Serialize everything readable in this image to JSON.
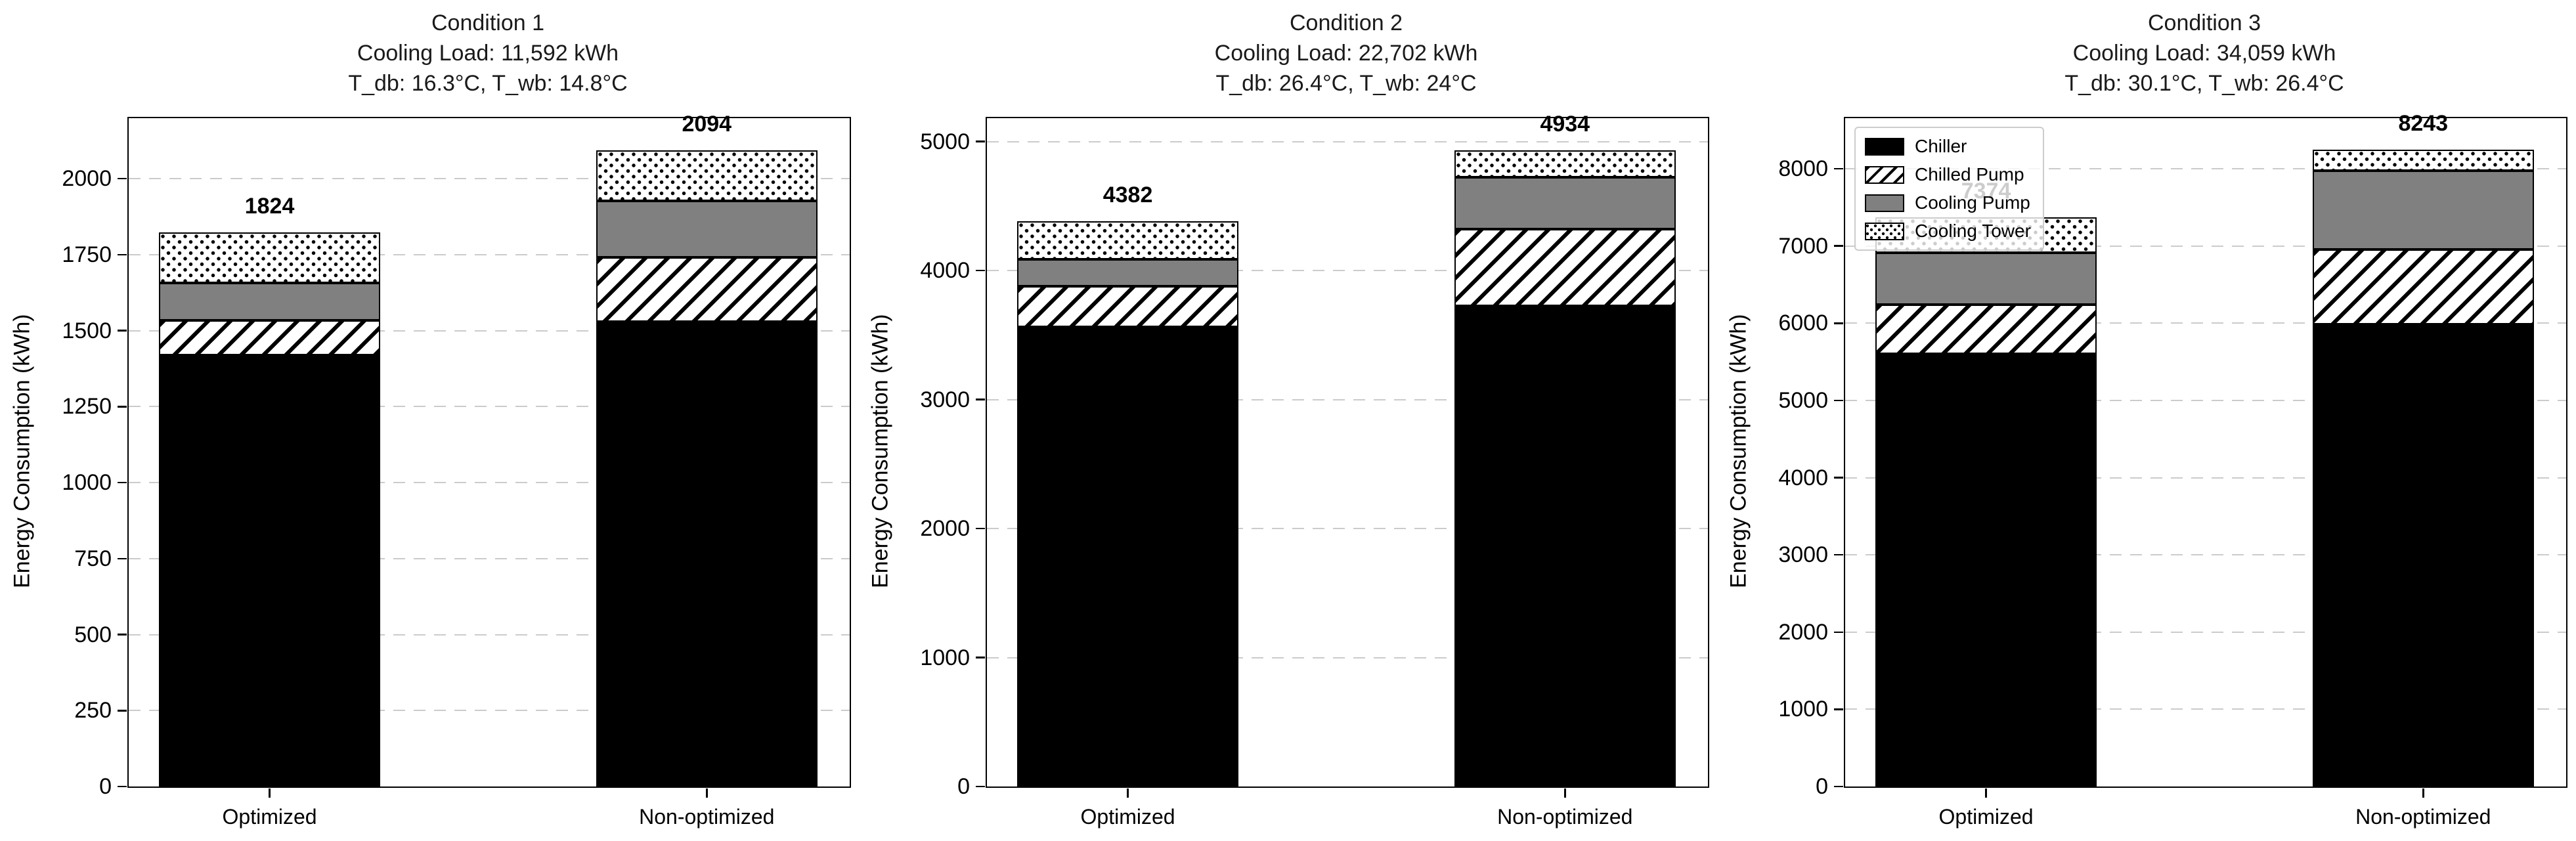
{
  "figure": {
    "background": "#ffffff"
  },
  "style": {
    "black": "#000000",
    "gray": "#808080",
    "white": "#ffffff",
    "grid_color": "#cbcbcb",
    "legend_border": "#cccccc",
    "patterns": {
      "Chiller": "solid-black",
      "Chilled Pump": "diagonal-hatch",
      "Cooling Pump": "solid-gray",
      "Cooling Tower": "dots"
    }
  },
  "legend": {
    "subplot_index": 2,
    "location": "upper-left",
    "entries": [
      {
        "label": "Chiller",
        "pattern": "solid-black"
      },
      {
        "label": "Chilled Pump",
        "pattern": "diagonal-hatch"
      },
      {
        "label": "Cooling Pump",
        "pattern": "solid-gray"
      },
      {
        "label": "Cooling Tower",
        "pattern": "dots"
      }
    ]
  },
  "chart_data": [
    {
      "type": "bar",
      "stacked": true,
      "title_lines": [
        "Condition 1",
        "Cooling Load: 11,592 kWh",
        "T_db: 16.3°C, T_wb: 14.8°C"
      ],
      "categories": [
        "Optimized",
        "Non-optimized"
      ],
      "series": [
        {
          "name": "Chiller",
          "values": [
            1419,
            1529
          ]
        },
        {
          "name": "Chilled Pump",
          "values": [
            115,
            213
          ]
        },
        {
          "name": "Cooling Pump",
          "values": [
            123,
            185
          ]
        },
        {
          "name": "Cooling Tower",
          "values": [
            167,
            167
          ]
        }
      ],
      "totals": [
        1824,
        2094
      ],
      "ylabel": "Energy Consumption (kWh)",
      "yticks": [
        0,
        250,
        500,
        750,
        1000,
        1250,
        1500,
        1750,
        2000
      ],
      "ylim": [
        0,
        2199
      ],
      "grid": "dashed-horizontal"
    },
    {
      "type": "bar",
      "stacked": true,
      "title_lines": [
        "Condition 2",
        "Cooling Load: 22,702 kWh",
        "T_db: 26.4°C, T_wb: 24°C"
      ],
      "categories": [
        "Optimized",
        "Non-optimized"
      ],
      "series": [
        {
          "name": "Chiller",
          "values": [
            3563,
            3724
          ]
        },
        {
          "name": "Chilled Pump",
          "values": [
            317,
            597
          ]
        },
        {
          "name": "Cooling Pump",
          "values": [
            209,
            403
          ]
        },
        {
          "name": "Cooling Tower",
          "values": [
            293,
            210
          ]
        }
      ],
      "totals": [
        4382,
        4934
      ],
      "ylabel": "Energy Consumption (kWh)",
      "yticks": [
        0,
        1000,
        2000,
        3000,
        4000,
        5000
      ],
      "ylim": [
        0,
        5181
      ],
      "grid": "dashed-horizontal"
    },
    {
      "type": "bar",
      "stacked": true,
      "title_lines": [
        "Condition 3",
        "Cooling Load: 34,059 kWh",
        "T_db: 30.1°C, T_wb: 26.4°C"
      ],
      "categories": [
        "Optimized",
        "Non-optimized"
      ],
      "series": [
        {
          "name": "Chiller",
          "values": [
            5606,
            5983
          ]
        },
        {
          "name": "Chilled Pump",
          "values": [
            636,
            974
          ]
        },
        {
          "name": "Cooling Pump",
          "values": [
            667,
            1017
          ]
        },
        {
          "name": "Cooling Tower",
          "values": [
            465,
            269
          ]
        }
      ],
      "totals": [
        7374,
        8243
      ],
      "ylabel": "Energy Consumption (kWh)",
      "yticks": [
        0,
        1000,
        2000,
        3000,
        4000,
        5000,
        6000,
        7000,
        8000
      ],
      "ylim": [
        0,
        8655
      ],
      "grid": "dashed-horizontal"
    }
  ]
}
